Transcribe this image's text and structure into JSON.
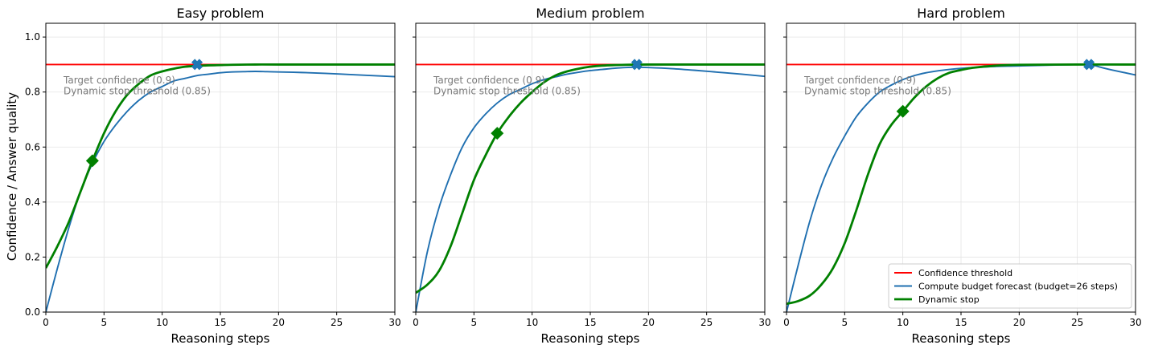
{
  "chart_data": {
    "type": "line",
    "ylabel": "Confidence / Answer quality",
    "legend": {
      "placement": "lower-right",
      "entries": [
        {
          "label": "Confidence threshold",
          "color": "#ff0000"
        },
        {
          "label": "Compute budget forecast (budget=26 steps)",
          "color": "#1f6fb0"
        },
        {
          "label": "Dynamic stop",
          "color": "#008000"
        }
      ]
    },
    "colors": {
      "threshold": "#ff0000",
      "forecast": "#1f6fb0",
      "dynamic": "#008000",
      "budget_marker": "#1f77b4"
    },
    "grid": true,
    "panels": [
      {
        "title": "Easy problem",
        "xlabel": "Reasoning steps",
        "xlim": [
          0,
          30
        ],
        "ylim": [
          0,
          1.05
        ],
        "xticks": [
          0,
          5,
          10,
          15,
          20,
          25,
          30
        ],
        "yticks": [
          0.0,
          0.2,
          0.4,
          0.6,
          0.8,
          1.0
        ],
        "annotations": [
          "Target confidence (0.9)",
          "Dynamic stop threshold (0.85)"
        ],
        "threshold": 0.9,
        "series": [
          {
            "name": "Compute budget forecast (budget=26 steps)",
            "x": [
              0,
              1,
              2,
              3,
              4,
              5,
              6,
              7,
              8,
              9,
              10,
              11,
              12,
              13,
              14,
              15,
              16,
              17,
              18,
              19,
              20,
              22,
              24,
              26,
              28,
              30
            ],
            "y": [
              0,
              0.16,
              0.31,
              0.44,
              0.54,
              0.62,
              0.68,
              0.73,
              0.77,
              0.8,
              0.82,
              0.84,
              0.85,
              0.86,
              0.865,
              0.87,
              0.873,
              0.874,
              0.875,
              0.874,
              0.873,
              0.871,
              0.868,
              0.864,
              0.86,
              0.856
            ]
          },
          {
            "name": "Dynamic stop",
            "x": [
              0,
              1,
              2,
              3,
              4,
              5,
              6,
              7,
              8,
              9,
              10,
              11,
              12,
              13,
              14,
              15,
              16,
              18,
              20,
              25,
              30
            ],
            "y": [
              0.16,
              0.24,
              0.33,
              0.44,
              0.55,
              0.65,
              0.73,
              0.79,
              0.83,
              0.86,
              0.875,
              0.885,
              0.892,
              0.895,
              0.897,
              0.898,
              0.899,
              0.9,
              0.9,
              0.9,
              0.9
            ]
          }
        ],
        "markers": [
          {
            "kind": "dynamic_stop",
            "x": 4,
            "y": 0.55
          },
          {
            "kind": "budget_stop",
            "x": 13,
            "y": 0.9
          }
        ]
      },
      {
        "title": "Medium problem",
        "xlabel": "Reasoning steps",
        "xlim": [
          0,
          30
        ],
        "ylim": [
          0,
          1.05
        ],
        "xticks": [
          0,
          5,
          10,
          15,
          20,
          25,
          30
        ],
        "yticks": [
          0.0,
          0.2,
          0.4,
          0.6,
          0.8,
          1.0
        ],
        "annotations": [
          "Target confidence (0.9)",
          "Dynamic stop threshold (0.85)"
        ],
        "threshold": 0.9,
        "series": [
          {
            "name": "Compute budget forecast (budget=26 steps)",
            "x": [
              0,
              1,
              2,
              3,
              4,
              5,
              6,
              7,
              8,
              9,
              10,
              11,
              12,
              13,
              14,
              15,
              16,
              17,
              18,
              19,
              20,
              22,
              24,
              26,
              28,
              30
            ],
            "y": [
              0,
              0.22,
              0.38,
              0.5,
              0.6,
              0.67,
              0.72,
              0.76,
              0.79,
              0.81,
              0.83,
              0.845,
              0.855,
              0.865,
              0.872,
              0.878,
              0.882,
              0.886,
              0.889,
              0.89,
              0.889,
              0.885,
              0.879,
              0.872,
              0.865,
              0.857
            ]
          },
          {
            "name": "Dynamic stop",
            "x": [
              0,
              1,
              2,
              3,
              4,
              5,
              6,
              7,
              8,
              9,
              10,
              11,
              12,
              13,
              14,
              15,
              16,
              18,
              20,
              25,
              30
            ],
            "y": [
              0.07,
              0.1,
              0.15,
              0.24,
              0.36,
              0.48,
              0.57,
              0.65,
              0.71,
              0.76,
              0.8,
              0.835,
              0.86,
              0.875,
              0.885,
              0.892,
              0.896,
              0.899,
              0.9,
              0.9,
              0.9
            ]
          }
        ],
        "markers": [
          {
            "kind": "dynamic_stop",
            "x": 7,
            "y": 0.65
          },
          {
            "kind": "budget_stop",
            "x": 19,
            "y": 0.9
          }
        ]
      },
      {
        "title": "Hard problem",
        "xlabel": "Reasoning steps",
        "xlim": [
          0,
          30
        ],
        "ylim": [
          0,
          1.05
        ],
        "xticks": [
          0,
          5,
          10,
          15,
          20,
          25,
          30
        ],
        "yticks": [
          0.0,
          0.2,
          0.4,
          0.6,
          0.8,
          1.0
        ],
        "annotations": [
          "Target confidence (0.9)",
          "Dynamic stop threshold (0.85)"
        ],
        "threshold": 0.9,
        "series": [
          {
            "name": "Compute budget forecast (budget=26 steps)",
            "x": [
              0,
              1,
              2,
              3,
              4,
              5,
              6,
              7,
              8,
              9,
              10,
              11,
              12,
              13,
              14,
              15,
              16,
              17,
              18,
              19,
              20,
              22,
              24,
              26,
              27,
              28,
              30
            ],
            "y": [
              0,
              0.17,
              0.33,
              0.46,
              0.56,
              0.64,
              0.71,
              0.76,
              0.8,
              0.825,
              0.845,
              0.86,
              0.87,
              0.877,
              0.882,
              0.886,
              0.889,
              0.891,
              0.893,
              0.894,
              0.895,
              0.897,
              0.899,
              0.9,
              0.89,
              0.88,
              0.862
            ]
          },
          {
            "name": "Dynamic stop",
            "x": [
              0,
              1,
              2,
              3,
              4,
              5,
              6,
              7,
              8,
              9,
              10,
              11,
              12,
              13,
              14,
              15,
              16,
              18,
              20,
              25,
              30
            ],
            "y": [
              0.03,
              0.04,
              0.06,
              0.1,
              0.16,
              0.25,
              0.37,
              0.5,
              0.61,
              0.68,
              0.73,
              0.78,
              0.82,
              0.85,
              0.87,
              0.88,
              0.888,
              0.896,
              0.899,
              0.9,
              0.9
            ]
          }
        ],
        "markers": [
          {
            "kind": "dynamic_stop",
            "x": 10,
            "y": 0.73
          },
          {
            "kind": "budget_stop",
            "x": 26,
            "y": 0.9
          }
        ]
      }
    ]
  }
}
